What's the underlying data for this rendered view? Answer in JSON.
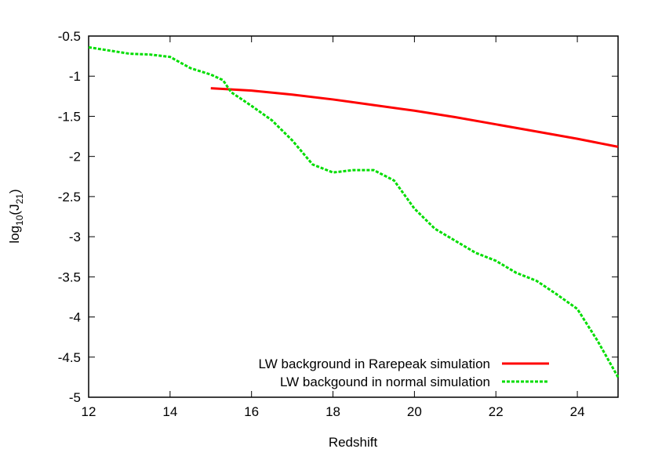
{
  "chart_data": {
    "type": "line",
    "x_label": "Redshift",
    "y_label": {
      "base": "log",
      "sub1": "10",
      "mid": "(J",
      "sub2": "21",
      "end": ")"
    },
    "xlim": [
      12,
      25
    ],
    "xticks": [
      12,
      14,
      16,
      18,
      20,
      22,
      24
    ],
    "ylim": [
      -5,
      -0.5
    ],
    "yticks": [
      -0.5,
      -1,
      -1.5,
      -2,
      -2.5,
      -3,
      -3.5,
      -4,
      -4.5,
      -5
    ],
    "legend": "lower right",
    "series": [
      {
        "name": "LW background in Rarepeak simulation",
        "color": "#ff0000",
        "dash": false,
        "x": [
          15,
          16,
          17,
          18,
          19,
          20,
          21,
          22,
          23,
          24,
          25
        ],
        "values": [
          -1.15,
          -1.18,
          -1.23,
          -1.29,
          -1.36,
          -1.43,
          -1.51,
          -1.6,
          -1.69,
          -1.78,
          -1.88
        ]
      },
      {
        "name": "LW backgound in normal simulation",
        "color": "#00dd00",
        "dash": true,
        "x": [
          12,
          12.5,
          13,
          13.5,
          14,
          14.5,
          15,
          15.3,
          15.5,
          16,
          16.5,
          17,
          17.5,
          18,
          18.5,
          19,
          19.5,
          20,
          20.5,
          21,
          21.5,
          22,
          22.5,
          23,
          23.5,
          24,
          24.5,
          25
        ],
        "values": [
          -0.64,
          -0.68,
          -0.72,
          -0.73,
          -0.76,
          -0.9,
          -0.98,
          -1.05,
          -1.2,
          -1.37,
          -1.55,
          -1.8,
          -2.1,
          -2.2,
          -2.17,
          -2.17,
          -2.3,
          -2.65,
          -2.9,
          -3.05,
          -3.2,
          -3.3,
          -3.45,
          -3.55,
          -3.72,
          -3.9,
          -4.3,
          -4.75
        ]
      }
    ]
  }
}
